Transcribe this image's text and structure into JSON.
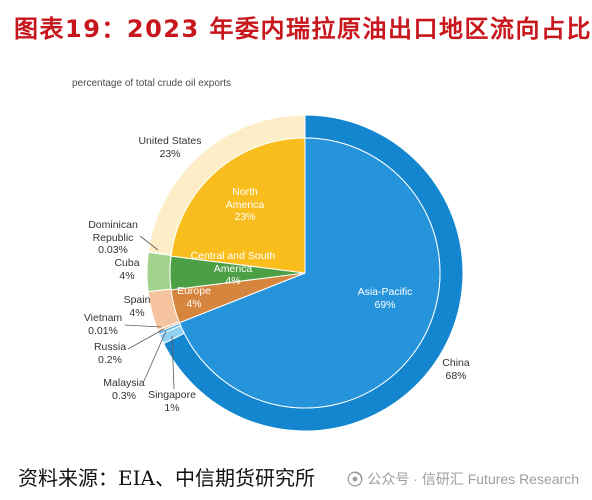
{
  "chart_data": {
    "type": "pie",
    "title": "图表19：2023 年委内瑞拉原油出口地区流向占比",
    "subtitle": "percentage of total crude oil exports",
    "inner_ring": {
      "categories": [
        "Asia-Pacific",
        "Europe",
        "Central and South America",
        "North America"
      ],
      "values": [
        69,
        4,
        4,
        23
      ],
      "labels": [
        "69%",
        "4%",
        "4%",
        "23%"
      ],
      "colors": [
        "#2594db",
        "#d6853f",
        "#4c9f45",
        "#f9be1e"
      ]
    },
    "outer_ring": {
      "categories": [
        "China",
        "Singapore",
        "Malaysia",
        "Russia",
        "Vietnam",
        "Spain",
        "Cuba",
        "Dominican Republic",
        "United States"
      ],
      "values": [
        68,
        1,
        0.3,
        0.2,
        0.01,
        4,
        4,
        0.03,
        23
      ],
      "labels": [
        "68%",
        "1%",
        "0.3%",
        "0.2%",
        "0.01%",
        "4%",
        "4%",
        "0.03%",
        "23%"
      ],
      "colors": [
        "#1486cf",
        "#93d1f3",
        "#5fb4e8",
        "#e9a06a",
        "#b7ddf4",
        "#f5c39e",
        "#a2d28c",
        "#d4ebc4",
        "#fdeec8"
      ]
    }
  },
  "footer": {
    "source": "资料来源：EIA、中信期货研究所",
    "watermark": "公众号 · 信研汇 Futures Research"
  }
}
